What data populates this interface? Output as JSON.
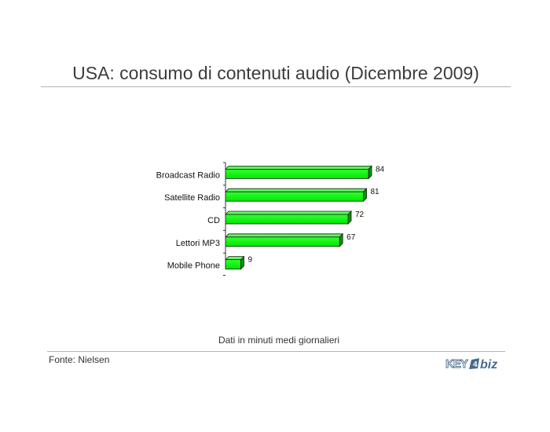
{
  "title": "USA: consumo di contenuti audio (Dicembre 2009)",
  "chart_data": {
    "type": "bar",
    "orientation": "horizontal",
    "categories": [
      "Broadcast Radio",
      "Satellite Radio",
      "CD",
      "Lettori MP3",
      "Mobile Phone"
    ],
    "values": [
      84,
      81,
      72,
      67,
      9
    ],
    "data_labels": [
      "84",
      "81",
      "72",
      "67",
      "9"
    ],
    "bar_color": "#00ff00",
    "grid": false,
    "note": "Dati in minuti medi giornalieri"
  },
  "footer": {
    "source": "Fonte: Nielsen",
    "logo_text": "KEY4biz"
  }
}
